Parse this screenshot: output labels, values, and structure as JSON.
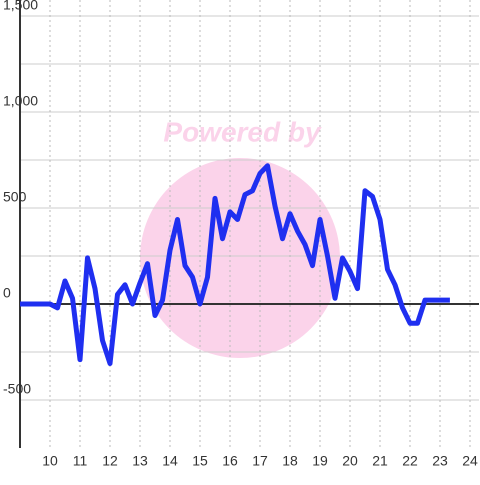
{
  "chart_data": {
    "type": "line",
    "watermark": "Powered by",
    "x": [
      9,
      10,
      10.25,
      10.5,
      10.75,
      11,
      11.25,
      11.5,
      11.75,
      12,
      12.25,
      12.5,
      12.75,
      13,
      13.25,
      13.5,
      13.75,
      14,
      14.25,
      14.5,
      14.75,
      15,
      15.25,
      15.5,
      15.75,
      16,
      16.25,
      16.5,
      16.75,
      17,
      17.25,
      17.5,
      17.75,
      18,
      18.25,
      18.5,
      18.75,
      19,
      19.25,
      19.5,
      19.75,
      20,
      20.25,
      20.5,
      20.75,
      21,
      21.25,
      21.5,
      21.75,
      22,
      22.25,
      22.5,
      23,
      23.33
    ],
    "series": [
      {
        "color": "#1f2ff0",
        "values": [
          0,
          0,
          -20,
          120,
          30,
          -290,
          240,
          80,
          -190,
          -310,
          50,
          100,
          0,
          110,
          210,
          -60,
          20,
          280,
          440,
          200,
          140,
          0,
          140,
          550,
          340,
          480,
          440,
          570,
          590,
          680,
          720,
          510,
          340,
          470,
          380,
          310,
          200,
          440,
          250,
          30,
          240,
          170,
          80,
          590,
          560,
          440,
          180,
          100,
          -20,
          -100,
          -100,
          20,
          20,
          20
        ]
      }
    ],
    "xlim": [
      9,
      24.3
    ],
    "xticks": [
      10,
      11,
      12,
      13,
      14,
      15,
      16,
      17,
      18,
      19,
      20,
      21,
      22,
      23,
      24
    ],
    "ylim": [
      -750,
      1500
    ],
    "yticks": [
      -500,
      0,
      500,
      {
        "value": 1000,
        "label": "1,000"
      },
      {
        "value": 1500,
        "label": "1,500"
      }
    ],
    "yminor_ticks": [
      -250,
      250,
      750,
      1250
    ],
    "grid": true
  }
}
